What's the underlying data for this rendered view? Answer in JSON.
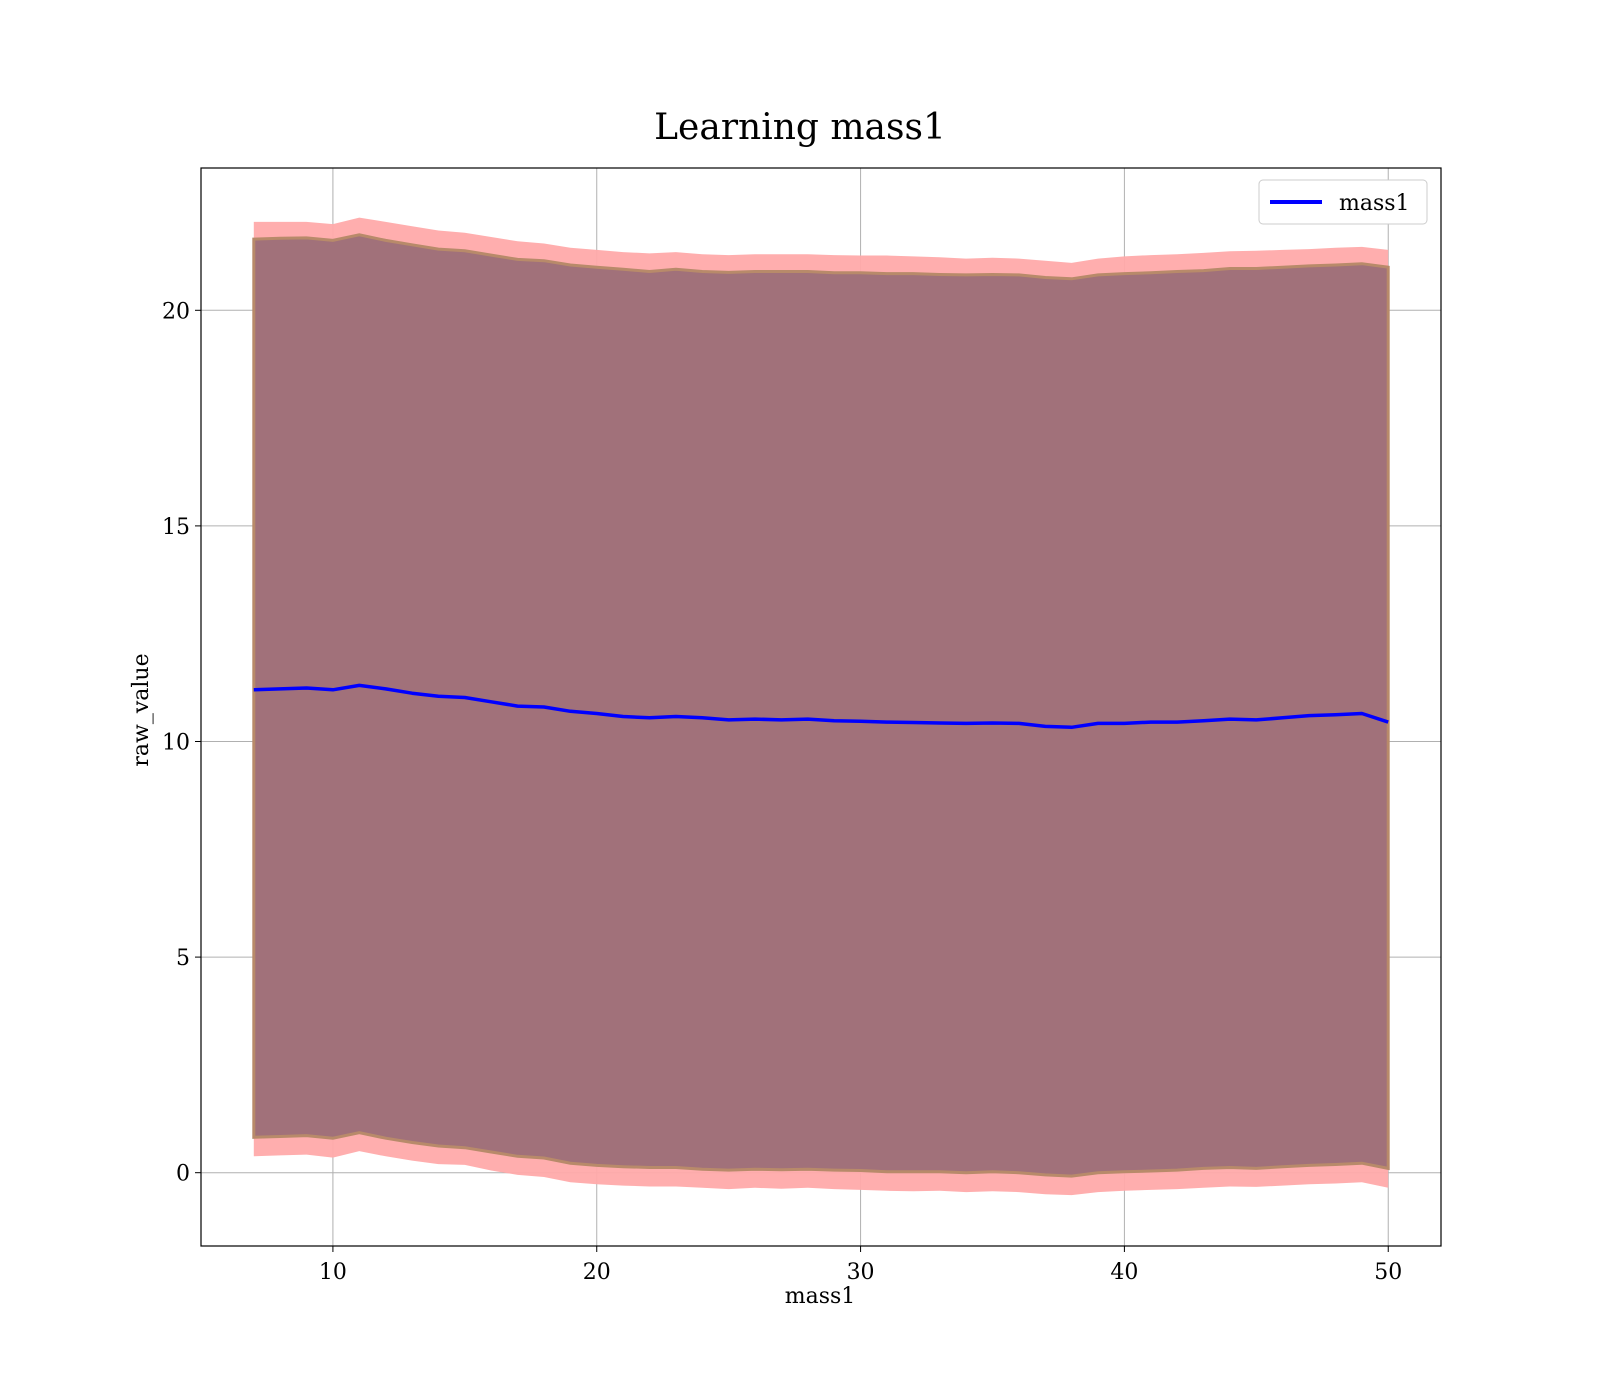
{
  "chart_data": {
    "type": "line",
    "title": "Learning mass1",
    "xlabel": "mass1",
    "ylabel": "raw_value",
    "xlim": [
      5,
      52
    ],
    "ylim": [
      -1.7,
      23.3
    ],
    "xticks": [
      10,
      20,
      30,
      40,
      50
    ],
    "yticks": [
      0,
      5,
      10,
      15,
      20
    ],
    "grid": true,
    "legend_position": "top-right",
    "colors": {
      "line": "#0000ff",
      "outer_band": "#ffaaaa",
      "inner_band": "#a1717a",
      "inner_band_edge": "#b88a6a"
    },
    "series": [
      {
        "name": "mass1",
        "x": [
          7,
          8,
          9,
          10,
          11,
          12,
          13,
          14,
          15,
          16,
          17,
          18,
          19,
          20,
          21,
          22,
          23,
          24,
          25,
          26,
          27,
          28,
          29,
          30,
          31,
          32,
          33,
          34,
          35,
          36,
          37,
          38,
          39,
          40,
          41,
          42,
          43,
          44,
          45,
          46,
          47,
          48,
          49,
          50
        ],
        "values": [
          11.2,
          11.22,
          11.24,
          11.2,
          11.3,
          11.22,
          11.12,
          11.05,
          11.02,
          10.92,
          10.82,
          10.8,
          10.7,
          10.65,
          10.58,
          10.55,
          10.58,
          10.55,
          10.5,
          10.52,
          10.5,
          10.52,
          10.48,
          10.47,
          10.45,
          10.44,
          10.43,
          10.42,
          10.43,
          10.42,
          10.35,
          10.33,
          10.42,
          10.42,
          10.45,
          10.45,
          10.48,
          10.52,
          10.5,
          10.55,
          10.6,
          10.62,
          10.65,
          10.45
        ]
      }
    ],
    "bands": [
      {
        "role": "outer",
        "x": [
          7,
          8,
          9,
          10,
          11,
          12,
          13,
          14,
          15,
          16,
          17,
          18,
          19,
          20,
          21,
          22,
          23,
          24,
          25,
          26,
          27,
          28,
          29,
          30,
          31,
          32,
          33,
          34,
          35,
          36,
          37,
          38,
          39,
          40,
          41,
          42,
          43,
          44,
          45,
          46,
          47,
          48,
          49,
          50
        ],
        "upper": [
          22.05,
          22.05,
          22.05,
          22.0,
          22.15,
          22.05,
          21.95,
          21.85,
          21.8,
          21.7,
          21.6,
          21.55,
          21.45,
          21.4,
          21.35,
          21.32,
          21.35,
          21.3,
          21.28,
          21.3,
          21.3,
          21.3,
          21.28,
          21.27,
          21.27,
          21.25,
          21.23,
          21.2,
          21.22,
          21.2,
          21.15,
          21.1,
          21.2,
          21.25,
          21.28,
          21.3,
          21.33,
          21.37,
          21.38,
          21.4,
          21.42,
          21.45,
          21.47,
          21.4
        ],
        "lower": [
          0.38,
          0.4,
          0.42,
          0.35,
          0.5,
          0.38,
          0.28,
          0.2,
          0.18,
          0.05,
          -0.05,
          -0.1,
          -0.22,
          -0.27,
          -0.3,
          -0.32,
          -0.32,
          -0.35,
          -0.38,
          -0.35,
          -0.37,
          -0.35,
          -0.38,
          -0.4,
          -0.42,
          -0.43,
          -0.42,
          -0.45,
          -0.43,
          -0.45,
          -0.5,
          -0.52,
          -0.45,
          -0.42,
          -0.4,
          -0.38,
          -0.35,
          -0.32,
          -0.33,
          -0.3,
          -0.27,
          -0.25,
          -0.22,
          -0.35
        ]
      },
      {
        "role": "inner",
        "x": [
          7,
          8,
          9,
          10,
          11,
          12,
          13,
          14,
          15,
          16,
          17,
          18,
          19,
          20,
          21,
          22,
          23,
          24,
          25,
          26,
          27,
          28,
          29,
          30,
          31,
          32,
          33,
          34,
          35,
          36,
          37,
          38,
          39,
          40,
          41,
          42,
          43,
          44,
          45,
          46,
          47,
          48,
          49,
          50
        ],
        "upper": [
          21.65,
          21.67,
          21.68,
          21.62,
          21.75,
          21.62,
          21.52,
          21.42,
          21.38,
          21.28,
          21.18,
          21.15,
          21.05,
          21.0,
          20.95,
          20.9,
          20.95,
          20.9,
          20.88,
          20.9,
          20.9,
          20.9,
          20.87,
          20.87,
          20.85,
          20.85,
          20.83,
          20.82,
          20.83,
          20.82,
          20.76,
          20.73,
          20.82,
          20.85,
          20.87,
          20.9,
          20.92,
          20.97,
          20.97,
          21.0,
          21.03,
          21.05,
          21.08,
          21.0
        ],
        "lower": [
          0.82,
          0.84,
          0.86,
          0.8,
          0.93,
          0.8,
          0.7,
          0.62,
          0.58,
          0.48,
          0.38,
          0.34,
          0.22,
          0.17,
          0.14,
          0.12,
          0.12,
          0.08,
          0.06,
          0.08,
          0.07,
          0.08,
          0.06,
          0.05,
          0.02,
          0.02,
          0.02,
          0.0,
          0.02,
          0.0,
          -0.05,
          -0.08,
          0.0,
          0.02,
          0.04,
          0.06,
          0.1,
          0.12,
          0.1,
          0.14,
          0.17,
          0.19,
          0.22,
          0.1
        ]
      }
    ]
  }
}
